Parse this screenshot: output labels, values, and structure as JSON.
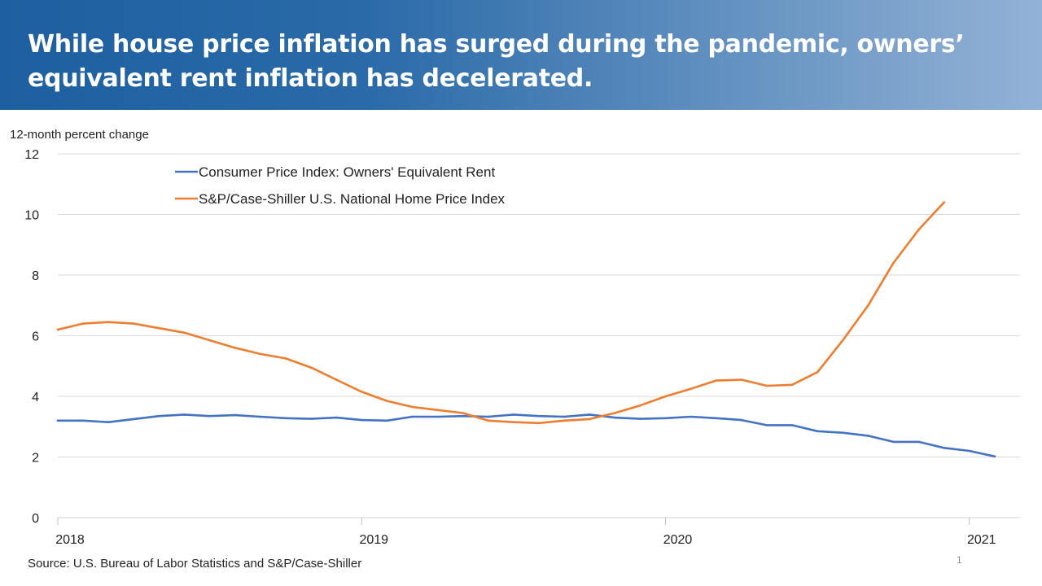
{
  "title": "While house price inflation has surged during the pandemic, owners’ equivalent rent inflation has decelerated.",
  "source": "Source: U.S. Bureau of Labor Statistics and S&P/Case-Shiller",
  "slide_number": "1",
  "colors": {
    "banner_start": "#1d5fa0",
    "banner_end": "#93b2d6",
    "oer": "#4472c4",
    "hpi": "#ed7d31",
    "grid": "#d9d9d9"
  },
  "chart_data": {
    "type": "line",
    "ylabel": "12-month percent change",
    "ylim": [
      0,
      12
    ],
    "yticks": [
      "0",
      "2",
      "4",
      "6",
      "8",
      "10",
      "12"
    ],
    "xlim": [
      "2018-01",
      "2021-03"
    ],
    "xticks": [
      "2018",
      "2019",
      "2020",
      "2021"
    ],
    "grid": true,
    "legend_position": "top-left",
    "series": [
      {
        "name": "Consumer Price Index: Owners' Equivalent Rent",
        "color": "#4472c4",
        "x": [
          "2018-01",
          "2018-02",
          "2018-03",
          "2018-04",
          "2018-05",
          "2018-06",
          "2018-07",
          "2018-08",
          "2018-09",
          "2018-10",
          "2018-11",
          "2018-12",
          "2019-01",
          "2019-02",
          "2019-03",
          "2019-04",
          "2019-05",
          "2019-06",
          "2019-07",
          "2019-08",
          "2019-09",
          "2019-10",
          "2019-11",
          "2019-12",
          "2020-01",
          "2020-02",
          "2020-03",
          "2020-04",
          "2020-05",
          "2020-06",
          "2020-07",
          "2020-08",
          "2020-09",
          "2020-10",
          "2020-11",
          "2020-12",
          "2021-01",
          "2021-02"
        ],
        "values": [
          3.2,
          3.2,
          3.15,
          3.25,
          3.35,
          3.4,
          3.35,
          3.38,
          3.33,
          3.28,
          3.26,
          3.3,
          3.22,
          3.2,
          3.33,
          3.33,
          3.35,
          3.33,
          3.4,
          3.35,
          3.33,
          3.4,
          3.3,
          3.26,
          3.28,
          3.33,
          3.28,
          3.22,
          3.05,
          3.05,
          2.85,
          2.8,
          2.7,
          2.5,
          2.5,
          2.3,
          2.2,
          2.02
        ]
      },
      {
        "name": "S&P/Case-Shiller U.S. National Home Price Index",
        "color": "#ed7d31",
        "x": [
          "2018-01",
          "2018-02",
          "2018-03",
          "2018-04",
          "2018-05",
          "2018-06",
          "2018-07",
          "2018-08",
          "2018-09",
          "2018-10",
          "2018-11",
          "2018-12",
          "2019-01",
          "2019-02",
          "2019-03",
          "2019-04",
          "2019-05",
          "2019-06",
          "2019-07",
          "2019-08",
          "2019-09",
          "2019-10",
          "2019-11",
          "2019-12",
          "2020-01",
          "2020-02",
          "2020-03",
          "2020-04",
          "2020-05",
          "2020-06",
          "2020-07",
          "2020-08",
          "2020-09",
          "2020-10",
          "2020-11",
          "2020-12"
        ],
        "values": [
          6.2,
          6.4,
          6.45,
          6.4,
          6.25,
          6.1,
          5.85,
          5.6,
          5.4,
          5.25,
          4.95,
          4.55,
          4.15,
          3.85,
          3.65,
          3.55,
          3.45,
          3.2,
          3.15,
          3.12,
          3.2,
          3.25,
          3.45,
          3.7,
          4.0,
          4.25,
          4.52,
          4.55,
          4.35,
          4.38,
          4.8,
          5.85,
          7.0,
          8.4,
          9.5,
          10.4
        ]
      }
    ]
  }
}
